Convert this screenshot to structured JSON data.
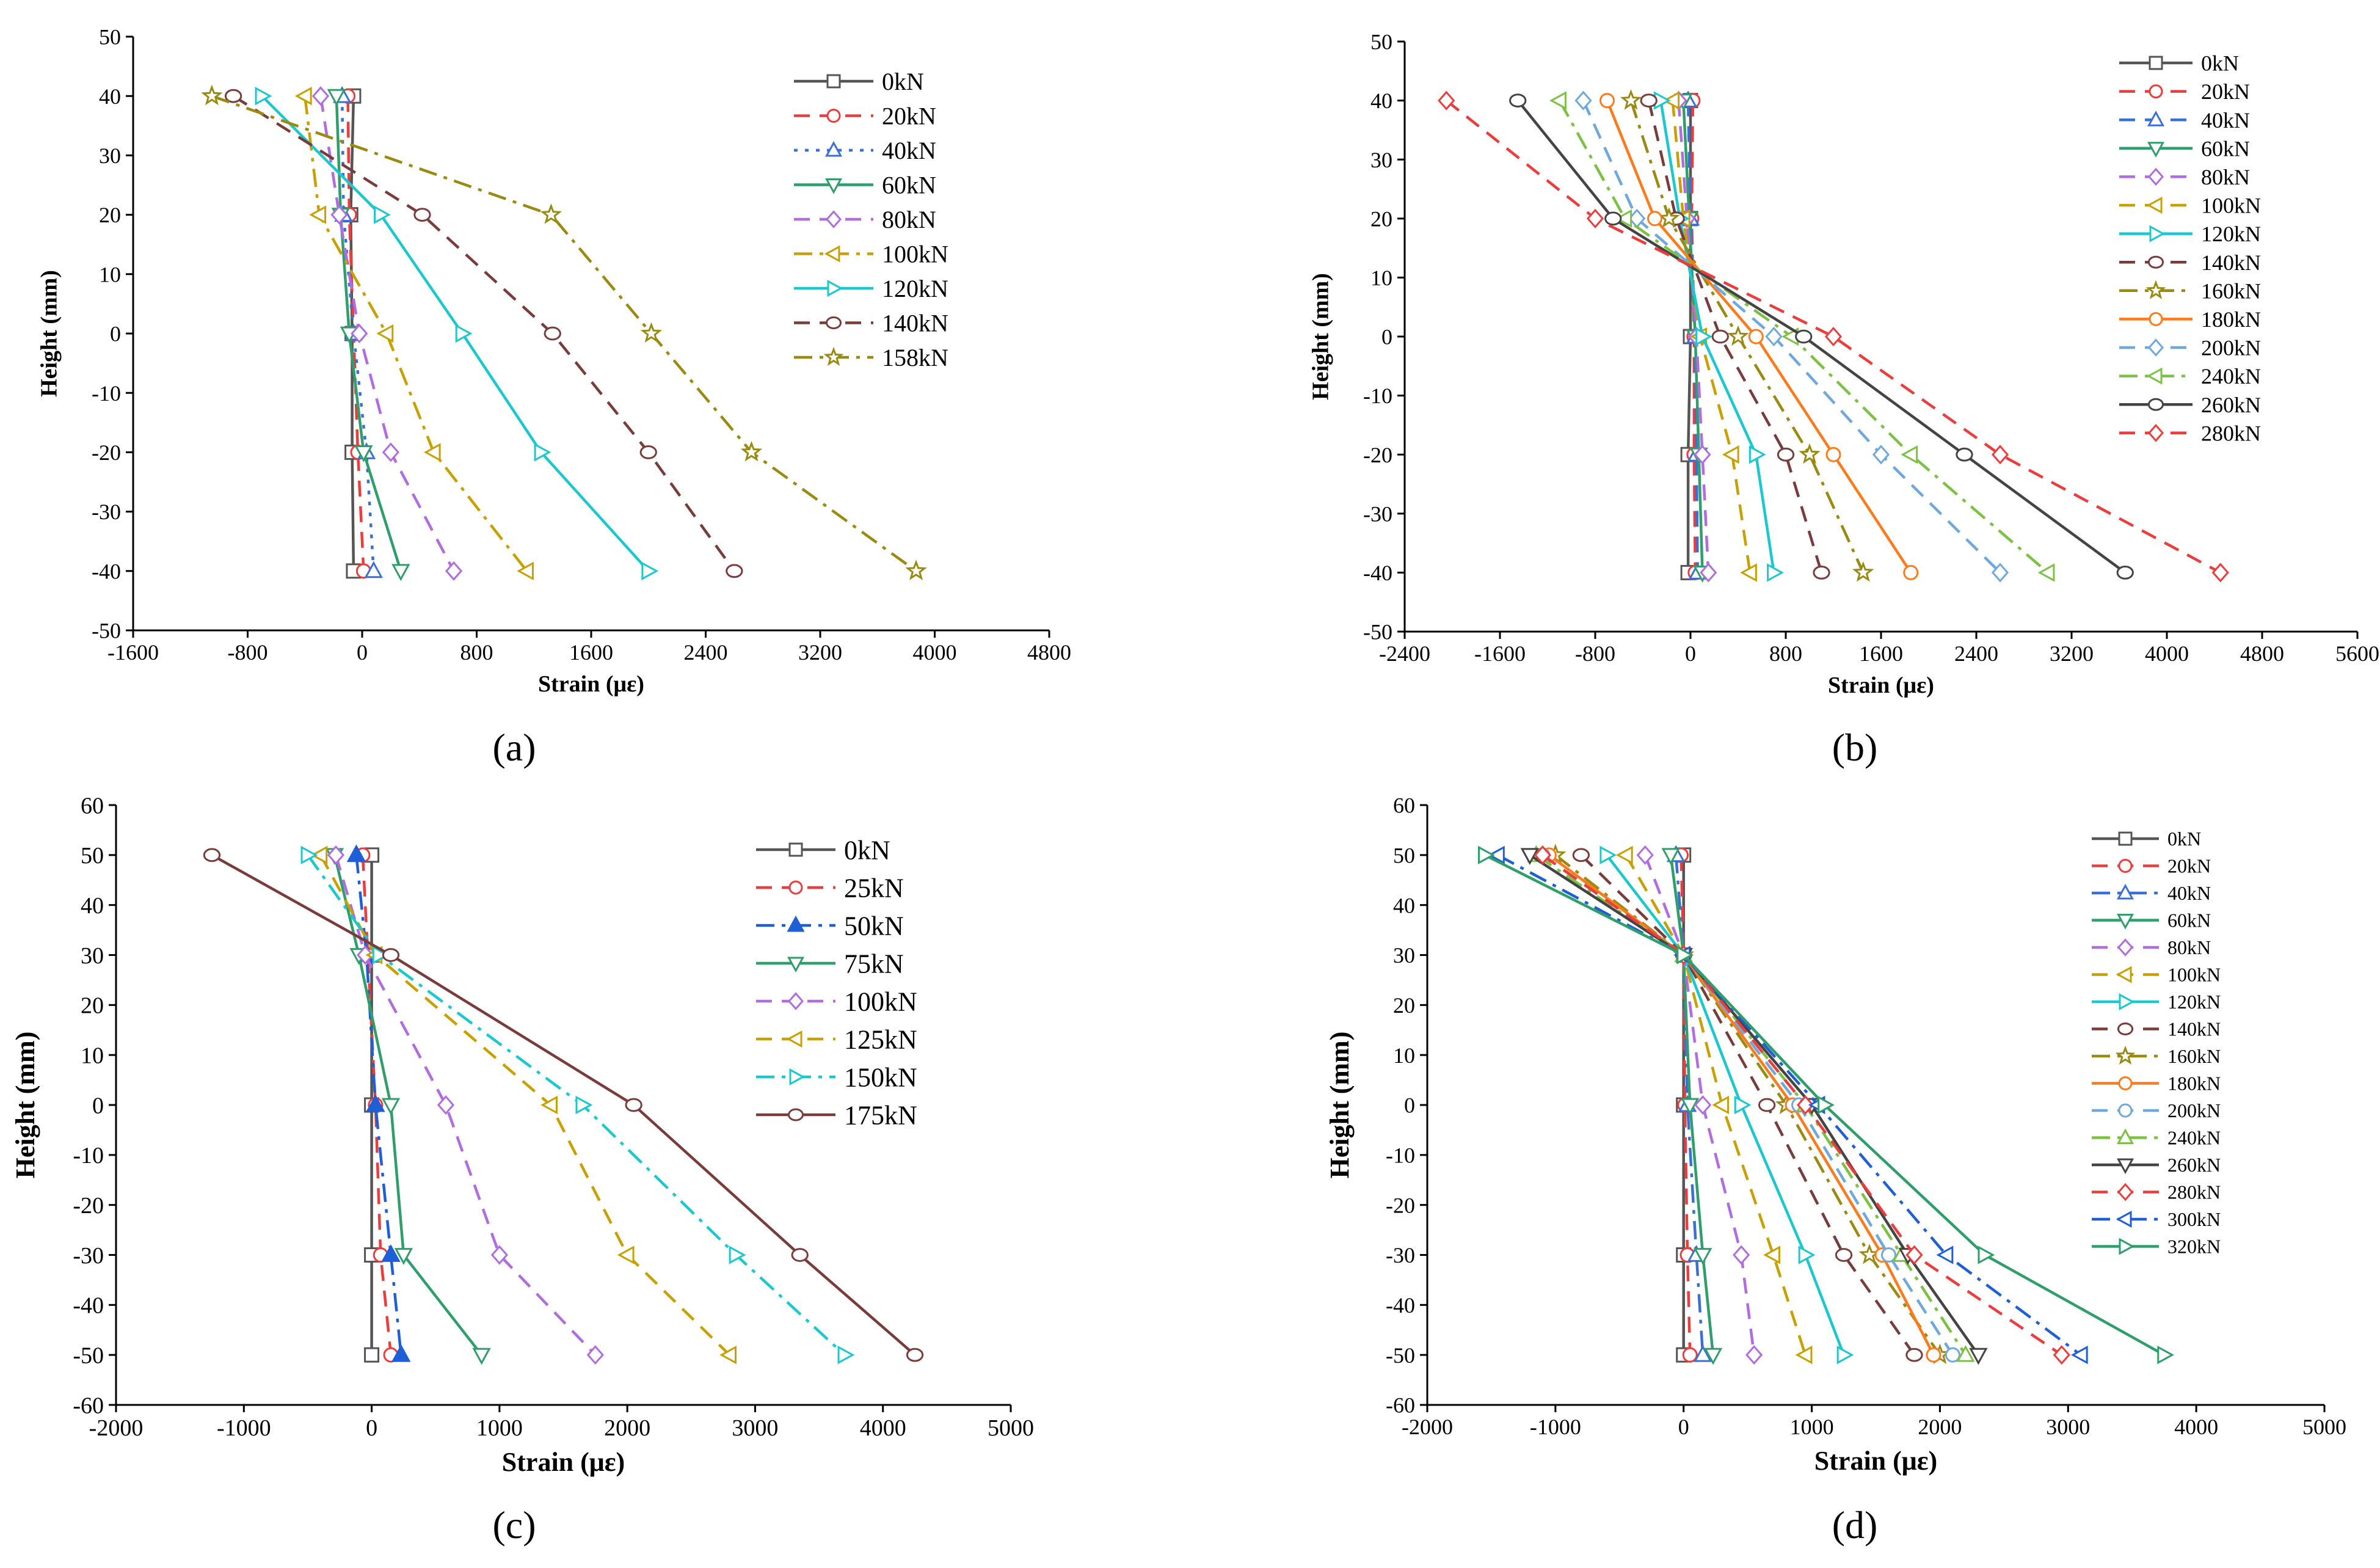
{
  "panel_labels": [
    "(a)",
    "(b)",
    "(c)",
    "(d)"
  ],
  "chart_data": [
    {
      "type": "line",
      "panel": "(a)",
      "xlabel": "Strain (με)",
      "ylabel": "Height (mm)",
      "xlim": [
        -1600,
        4800
      ],
      "ylim": [
        -50,
        50
      ],
      "xticks": [
        -1600,
        -800,
        0,
        800,
        1600,
        2400,
        3200,
        4000,
        4800
      ],
      "yticks": [
        -50,
        -40,
        -30,
        -20,
        -10,
        0,
        10,
        20,
        30,
        40,
        50
      ],
      "xtick_labels": [
        "-1600",
        "-800",
        "0",
        "800",
        "1600",
        "2400",
        "3200",
        "4000",
        "4800"
      ],
      "ytick_labels": [
        "-50",
        "-40",
        "-30",
        "-20",
        "-10",
        "0",
        "10",
        "20",
        "30",
        "40",
        "50"
      ],
      "heights": [
        40,
        20,
        0,
        -20,
        -40
      ],
      "legend_position": "top-right",
      "series": [
        {
          "name": "0kN",
          "color": "#555555",
          "dash": "solid",
          "marker": "square",
          "strain": [
            -60,
            -80,
            -70,
            -70,
            -60
          ]
        },
        {
          "name": "20kN",
          "color": "#ee3b3b",
          "dash": "dash",
          "marker": "circle",
          "strain": [
            -100,
            -90,
            -60,
            -30,
            10
          ]
        },
        {
          "name": "40kN",
          "color": "#3a6fd8",
          "dash": "dot",
          "marker": "triangle",
          "strain": [
            -140,
            -130,
            -60,
            30,
            80
          ]
        },
        {
          "name": "60kN",
          "color": "#2e9f6a",
          "dash": "solid",
          "marker": "tri-down",
          "strain": [
            -180,
            -150,
            -90,
            10,
            270
          ]
        },
        {
          "name": "80kN",
          "color": "#b06ce0",
          "dash": "dash",
          "marker": "diamond",
          "strain": [
            -290,
            -160,
            -20,
            200,
            640
          ]
        },
        {
          "name": "100kN",
          "color": "#c8a000",
          "dash": "dashdot",
          "marker": "tri-left",
          "strain": [
            -400,
            -300,
            170,
            500,
            1150
          ]
        },
        {
          "name": "120kN",
          "color": "#1ac8d0",
          "dash": "solid",
          "marker": "tri-right",
          "strain": [
            -700,
            130,
            700,
            1250,
            2000
          ]
        },
        {
          "name": "140kN",
          "color": "#7a3b3b",
          "dash": "dash",
          "marker": "hexagon",
          "strain": [
            -900,
            420,
            1330,
            2000,
            2600
          ]
        },
        {
          "name": "158kN",
          "color": "#9a8a10",
          "dash": "dashdot",
          "marker": "star",
          "strain": [
            -1050,
            1320,
            2020,
            2720,
            3870
          ]
        }
      ]
    },
    {
      "type": "line",
      "panel": "(b)",
      "xlabel": "Strain (με)",
      "ylabel": "Height (mm)",
      "xlim": [
        -2400,
        5600
      ],
      "ylim": [
        -50,
        50
      ],
      "xticks": [
        -2400,
        -1600,
        -800,
        0,
        800,
        1600,
        2400,
        3200,
        4000,
        4800,
        5600
      ],
      "yticks": [
        -50,
        -40,
        -30,
        -20,
        -10,
        0,
        10,
        20,
        30,
        40,
        50
      ],
      "xtick_labels": [
        "-2400",
        "-1600",
        "-800",
        "0",
        "800",
        "1600",
        "2400",
        "3200",
        "4000",
        "4800",
        "5600"
      ],
      "ytick_labels": [
        "-50",
        "-40",
        "-30",
        "-20",
        "-10",
        "0",
        "10",
        "20",
        "30",
        "40",
        "50"
      ],
      "heights": [
        40,
        20,
        0,
        -20,
        -40
      ],
      "legend_position": "top-right",
      "series": [
        {
          "name": "0kN",
          "color": "#555555",
          "dash": "solid",
          "marker": "square",
          "strain": [
            0,
            0,
            0,
            -20,
            -20
          ]
        },
        {
          "name": "20kN",
          "color": "#ee3b3b",
          "dash": "dash",
          "marker": "circle",
          "strain": [
            20,
            10,
            30,
            30,
            40
          ]
        },
        {
          "name": "40kN",
          "color": "#3a6fd8",
          "dash": "dash",
          "marker": "triangle",
          "strain": [
            -20,
            0,
            40,
            50,
            60
          ]
        },
        {
          "name": "60kN",
          "color": "#2e9f6a",
          "dash": "solid",
          "marker": "tri-down",
          "strain": [
            -60,
            -10,
            40,
            70,
            100
          ]
        },
        {
          "name": "80kN",
          "color": "#b06ce0",
          "dash": "dash",
          "marker": "diamond",
          "strain": [
            -100,
            -30,
            50,
            100,
            150
          ]
        },
        {
          "name": "100kN",
          "color": "#c8a000",
          "dash": "dash",
          "marker": "tri-left",
          "strain": [
            -150,
            -60,
            80,
            350,
            500
          ]
        },
        {
          "name": "120kN",
          "color": "#1ac8d0",
          "dash": "solid",
          "marker": "tri-right",
          "strain": [
            -250,
            -90,
            100,
            550,
            700
          ]
        },
        {
          "name": "140kN",
          "color": "#7a3b3b",
          "dash": "dash",
          "marker": "hexagon",
          "strain": [
            -350,
            -120,
            250,
            800,
            1100
          ]
        },
        {
          "name": "160kN",
          "color": "#9a8a10",
          "dash": "dashdot",
          "marker": "star",
          "strain": [
            -500,
            -180,
            400,
            1000,
            1450
          ]
        },
        {
          "name": "180kN",
          "color": "#ff7a1a",
          "dash": "solid",
          "marker": "circle",
          "strain": [
            -700,
            -300,
            550,
            1200,
            1850
          ]
        },
        {
          "name": "200kN",
          "color": "#6fa8dc",
          "dash": "dash",
          "marker": "diamond",
          "strain": [
            -900,
            -450,
            700,
            1600,
            2600
          ]
        },
        {
          "name": "240kN",
          "color": "#7cc242",
          "dash": "dashdot",
          "marker": "tri-left",
          "strain": [
            -1100,
            -550,
            850,
            1850,
            3000
          ]
        },
        {
          "name": "260kN",
          "color": "#444444",
          "dash": "solid",
          "marker": "hexagon",
          "strain": [
            -1450,
            -650,
            950,
            2300,
            3650
          ]
        },
        {
          "name": "280kN",
          "color": "#ee3b3b",
          "dash": "dash",
          "marker": "diamond",
          "strain": [
            -2050,
            -800,
            1200,
            2600,
            4450
          ]
        }
      ]
    },
    {
      "type": "line",
      "panel": "(c)",
      "xlabel": "Strain (με)",
      "ylabel": "Height (mm)",
      "xlim": [
        -2000,
        5000
      ],
      "ylim": [
        -60,
        60
      ],
      "xticks": [
        -2000,
        -1000,
        0,
        1000,
        2000,
        3000,
        4000,
        5000
      ],
      "yticks": [
        -60,
        -50,
        -40,
        -30,
        -20,
        -10,
        0,
        10,
        20,
        30,
        40,
        50,
        60
      ],
      "xtick_labels": [
        "-2000",
        "-1000",
        "0",
        "1000",
        "2000",
        "3000",
        "4000",
        "5000"
      ],
      "ytick_labels": [
        "-60",
        "-50",
        "-40",
        "-30",
        "-20",
        "-10",
        "0",
        "10",
        "20",
        "30",
        "40",
        "50",
        "60"
      ],
      "heights": [
        50,
        30,
        0,
        -30,
        -50
      ],
      "legend_position": "top-right",
      "series": [
        {
          "name": "0kN",
          "color": "#555555",
          "dash": "solid",
          "marker": "square",
          "strain": [
            0,
            0,
            0,
            0,
            0
          ]
        },
        {
          "name": "25kN",
          "color": "#ee3b3b",
          "dash": "dash",
          "marker": "circle",
          "strain": [
            -70,
            -30,
            30,
            70,
            150
          ]
        },
        {
          "name": "50kN",
          "color": "#1e5fd8",
          "dash": "dashdot",
          "marker": "tri-filled",
          "strain": [
            -120,
            -40,
            30,
            150,
            230
          ]
        },
        {
          "name": "75kN",
          "color": "#2e9f6a",
          "dash": "solid",
          "marker": "tri-down",
          "strain": [
            -290,
            -100,
            150,
            250,
            860
          ]
        },
        {
          "name": "100kN",
          "color": "#b06ce0",
          "dash": "dash",
          "marker": "diamond",
          "strain": [
            -280,
            -50,
            580,
            1000,
            1750
          ]
        },
        {
          "name": "125kN",
          "color": "#c8a000",
          "dash": "dash",
          "marker": "tri-left",
          "strain": [
            -400,
            30,
            1400,
            2000,
            2800
          ]
        },
        {
          "name": "150kN",
          "color": "#1ac8d0",
          "dash": "dashdot",
          "marker": "tri-right",
          "strain": [
            -500,
            60,
            1650,
            2850,
            3700
          ]
        },
        {
          "name": "175kN",
          "color": "#7a3b3b",
          "dash": "solid",
          "marker": "hexagon",
          "strain": [
            -1250,
            150,
            2050,
            3350,
            4250
          ]
        }
      ]
    },
    {
      "type": "line",
      "panel": "(d)",
      "xlabel": "Strain (με)",
      "ylabel": "Height (mm)",
      "xlim": [
        -2000,
        5000
      ],
      "ylim": [
        -60,
        60
      ],
      "xticks": [
        -2000,
        -1000,
        0,
        1000,
        2000,
        3000,
        4000,
        5000
      ],
      "yticks": [
        -60,
        -50,
        -40,
        -30,
        -20,
        -10,
        0,
        10,
        20,
        30,
        40,
        50,
        60
      ],
      "xtick_labels": [
        "-2000",
        "-1000",
        "0",
        "1000",
        "2000",
        "3000",
        "4000",
        "5000"
      ],
      "ytick_labels": [
        "-60",
        "-50",
        "-40",
        "-30",
        "-20",
        "-10",
        "0",
        "10",
        "20",
        "30",
        "40",
        "50",
        "60"
      ],
      "heights": [
        50,
        30,
        0,
        -30,
        -50
      ],
      "legend_position": "top-right",
      "series": [
        {
          "name": "0kN",
          "color": "#555555",
          "dash": "solid",
          "marker": "square",
          "strain": [
            0,
            0,
            0,
            0,
            0
          ]
        },
        {
          "name": "20kN",
          "color": "#ee3b3b",
          "dash": "dash",
          "marker": "circle",
          "strain": [
            -20,
            0,
            10,
            30,
            50
          ]
        },
        {
          "name": "40kN",
          "color": "#3a6fd8",
          "dash": "dashdot",
          "marker": "triangle",
          "strain": [
            -60,
            0,
            30,
            100,
            150
          ]
        },
        {
          "name": "60kN",
          "color": "#2e9f6a",
          "dash": "solid",
          "marker": "tri-down",
          "strain": [
            -100,
            0,
            50,
            150,
            230
          ]
        },
        {
          "name": "80kN",
          "color": "#b06ce0",
          "dash": "dash",
          "marker": "diamond",
          "strain": [
            -300,
            0,
            150,
            450,
            550
          ]
        },
        {
          "name": "100kN",
          "color": "#c8a000",
          "dash": "dash",
          "marker": "tri-left",
          "strain": [
            -450,
            0,
            300,
            700,
            950
          ]
        },
        {
          "name": "120kN",
          "color": "#1ac8d0",
          "dash": "solid",
          "marker": "tri-right",
          "strain": [
            -600,
            0,
            450,
            950,
            1250
          ]
        },
        {
          "name": "140kN",
          "color": "#7a3b3b",
          "dash": "dash",
          "marker": "hexagon",
          "strain": [
            -800,
            0,
            650,
            1250,
            1800
          ]
        },
        {
          "name": "160kN",
          "color": "#9a8a10",
          "dash": "dashdot",
          "marker": "star",
          "strain": [
            -1000,
            0,
            800,
            1450,
            2000
          ]
        },
        {
          "name": "180kN",
          "color": "#ff7a1a",
          "dash": "solid",
          "marker": "circle",
          "strain": [
            -1050,
            0,
            850,
            1550,
            1950
          ]
        },
        {
          "name": "200kN",
          "color": "#6fa8dc",
          "dash": "dash",
          "marker": "circle",
          "strain": [
            -1100,
            0,
            900,
            1600,
            2100
          ]
        },
        {
          "name": "240kN",
          "color": "#7cc242",
          "dash": "dashdot",
          "marker": "triangle",
          "strain": [
            -1150,
            0,
            950,
            1700,
            2200
          ]
        },
        {
          "name": "260kN",
          "color": "#444444",
          "dash": "solid",
          "marker": "tri-down",
          "strain": [
            -1200,
            0,
            1000,
            1750,
            2300
          ]
        },
        {
          "name": "280kN",
          "color": "#ee3b3b",
          "dash": "dash",
          "marker": "diamond",
          "strain": [
            -1100,
            0,
            950,
            1800,
            2950
          ]
        },
        {
          "name": "300kN",
          "color": "#1e5fd8",
          "dash": "dashdot",
          "marker": "tri-left",
          "strain": [
            -1450,
            0,
            1050,
            2050,
            3100
          ]
        },
        {
          "name": "320kN",
          "color": "#2e9f6a",
          "dash": "solid",
          "marker": "tri-right",
          "strain": [
            -1550,
            0,
            1100,
            2350,
            3750
          ]
        }
      ]
    }
  ]
}
